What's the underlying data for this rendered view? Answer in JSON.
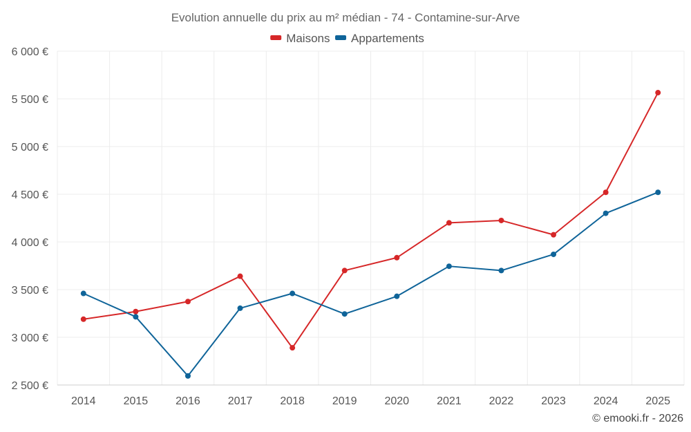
{
  "chart_data": {
    "type": "line",
    "title": "Evolution annuelle du prix au m² médian - 74 - Contamine-sur-Arve",
    "categories": [
      "2014",
      "2015",
      "2016",
      "2017",
      "2018",
      "2019",
      "2020",
      "2021",
      "2022",
      "2023",
      "2024",
      "2025"
    ],
    "series": [
      {
        "name": "Maisons",
        "color": "#d62728",
        "values": [
          3190,
          3270,
          3375,
          3640,
          2890,
          3700,
          3835,
          4200,
          4225,
          4075,
          4520,
          5565
        ]
      },
      {
        "name": "Appartements",
        "color": "#0f6499",
        "values": [
          3460,
          3215,
          2595,
          3305,
          3460,
          3245,
          3430,
          3745,
          3700,
          3870,
          4300,
          4520
        ]
      }
    ],
    "ylim": [
      2500,
      6000
    ],
    "yticks": [
      2500,
      3000,
      3500,
      4000,
      4500,
      5000,
      5500,
      6000
    ],
    "ytick_labels": [
      "2 500 €",
      "3 000 €",
      "3 500 €",
      "4 000 €",
      "4 500 €",
      "5 000 €",
      "5 500 €",
      "6 000 €"
    ],
    "xlabel": "",
    "ylabel": "",
    "grid": true,
    "legend_position": "top-center"
  },
  "credit": "© emooki.fr - 2026"
}
